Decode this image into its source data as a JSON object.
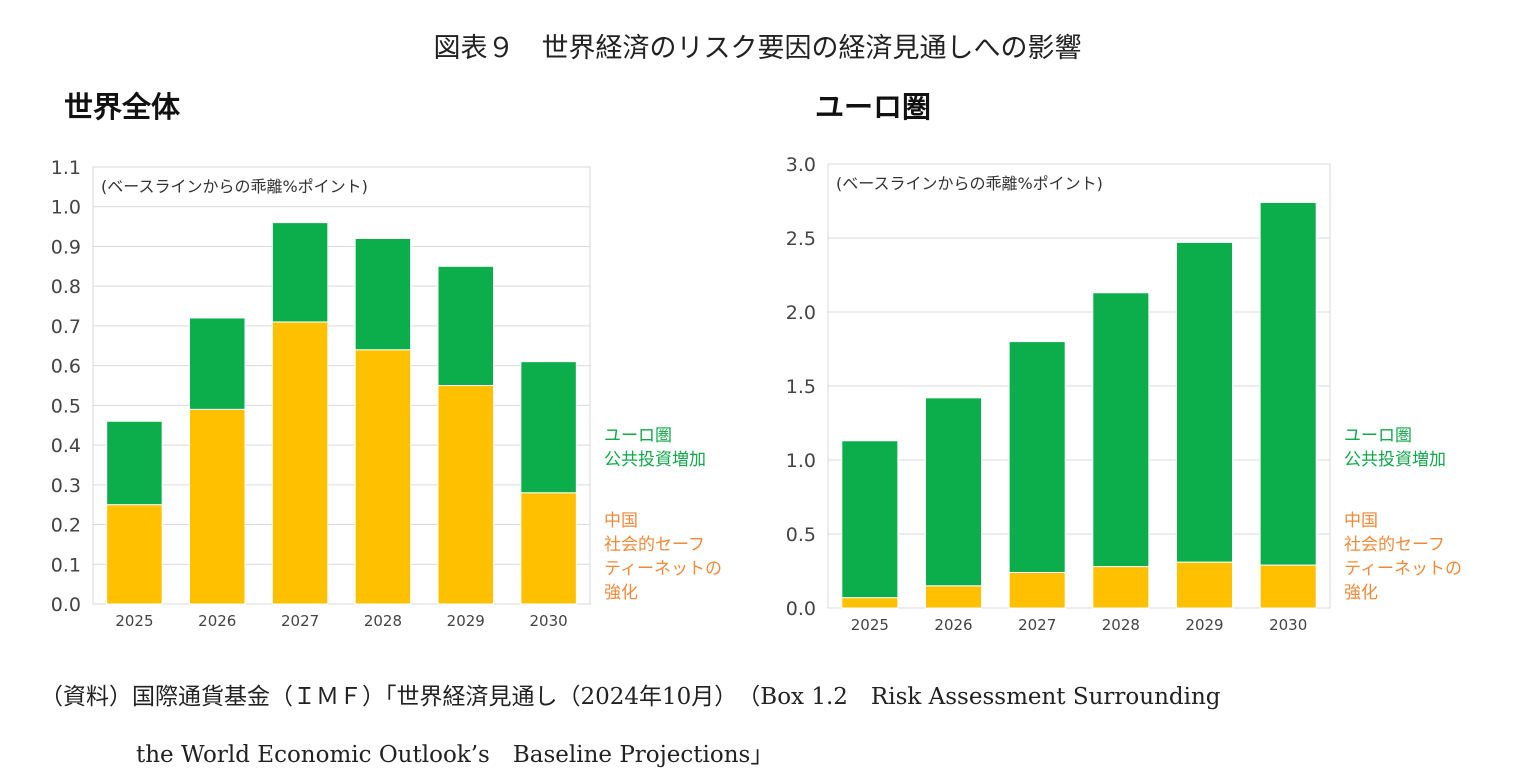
{
  "figure_title": "図表９　世界経済のリスク要因の経済見通しへの影響",
  "source": {
    "line1": "（資料）国際通貨基金（ＩＭＦ）「世界経済見通し（2024年10月）　（Box 1.2　Risk Assessment Surrounding",
    "line2": "the World Economic Outlook’s　Baseline Projections」"
  },
  "colors": {
    "eurozone": "#0BAE4B",
    "china": "#FFC000",
    "eurozone_label": "#10A84A",
    "china_label": "#F08A3A",
    "grid": "#D9D9D9",
    "axis_text": "#444444"
  },
  "chart_data": [
    {
      "type": "bar",
      "stacked": true,
      "title": "世界全体",
      "annotation": "(ベースラインからの乖離%ポイント)",
      "categories": [
        "2025",
        "2026",
        "2027",
        "2028",
        "2029",
        "2030"
      ],
      "ylim": [
        0,
        1.1
      ],
      "yticks": [
        "0.0",
        "0.1",
        "0.2",
        "0.3",
        "0.4",
        "0.5",
        "0.6",
        "0.7",
        "0.8",
        "0.9",
        "1.0",
        "1.1"
      ],
      "series": [
        {
          "name": "中国\n社会的セーフ\nティーネットの\n強化",
          "color": "#FFC000",
          "values": [
            0.25,
            0.49,
            0.71,
            0.64,
            0.55,
            0.28
          ]
        },
        {
          "name": "ユーロ圏\n公共投資増加",
          "color": "#0BAE4B",
          "values": [
            0.21,
            0.23,
            0.25,
            0.28,
            0.3,
            0.33
          ]
        }
      ]
    },
    {
      "type": "bar",
      "stacked": true,
      "title": "ユーロ圏",
      "annotation": "(ベースラインからの乖離%ポイント)",
      "categories": [
        "2025",
        "2026",
        "2027",
        "2028",
        "2029",
        "2030"
      ],
      "ylim": [
        0,
        3.0
      ],
      "yticks": [
        "0.0",
        "0.5",
        "1.0",
        "1.5",
        "2.0",
        "2.5",
        "3.0"
      ],
      "series": [
        {
          "name": "中国\n社会的セーフ\nティーネットの\n強化",
          "color": "#FFC000",
          "values": [
            0.07,
            0.15,
            0.24,
            0.28,
            0.31,
            0.29
          ]
        },
        {
          "name": "ユーロ圏\n公共投資増加",
          "color": "#0BAE4B",
          "values": [
            1.06,
            1.27,
            1.56,
            1.85,
            2.16,
            2.45
          ]
        }
      ]
    }
  ]
}
